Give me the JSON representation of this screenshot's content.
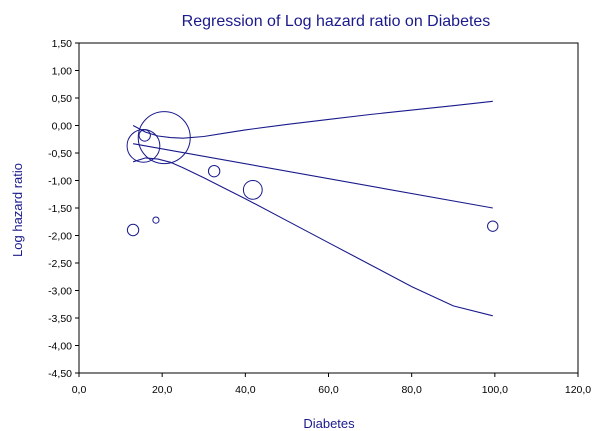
{
  "chart_data": {
    "type": "scatter",
    "title": "Regression of Log hazard ratio on Diabetes",
    "xlabel": "Diabetes",
    "ylabel": "Log hazard ratio",
    "xlim": [
      0,
      120
    ],
    "ylim": [
      -4.5,
      1.5
    ],
    "x_ticks": [
      "0,0",
      "20,0",
      "40,0",
      "60,0",
      "80,0",
      "100,0",
      "120,0"
    ],
    "y_ticks": [
      "1,50",
      "1,00",
      "0,50",
      "0,00",
      "-0,50",
      "-1,00",
      "-1,50",
      "-2,00",
      "-2,50",
      "-3,00",
      "-3,50",
      "-4,00",
      "-4,50"
    ],
    "grid": false,
    "points": [
      {
        "x": 13.0,
        "y": -1.9,
        "weight": 1.2
      },
      {
        "x": 15.8,
        "y": -0.18,
        "weight": 1.2
      },
      {
        "x": 15.5,
        "y": -0.37,
        "weight": 10.0
      },
      {
        "x": 18.5,
        "y": -1.72,
        "weight": 0.35
      },
      {
        "x": 20.5,
        "y": -0.22,
        "weight": 25.0
      },
      {
        "x": 32.5,
        "y": -0.83,
        "weight": 1.2
      },
      {
        "x": 41.8,
        "y": -1.17,
        "weight": 3.3
      },
      {
        "x": 99.5,
        "y": -1.83,
        "weight": 1.0
      }
    ],
    "regression_line": {
      "x": [
        13,
        99.5
      ],
      "y": [
        -0.33,
        -1.5
      ]
    },
    "ci_upper": {
      "x": [
        13,
        16,
        19,
        22,
        25,
        30,
        35,
        40,
        50,
        60,
        70,
        80,
        90,
        99.5
      ],
      "y": [
        0.0,
        -0.12,
        -0.19,
        -0.22,
        -0.23,
        -0.2,
        -0.14,
        -0.08,
        0.02,
        0.11,
        0.2,
        0.28,
        0.36,
        0.44
      ]
    },
    "ci_lower": {
      "x": [
        13,
        16,
        19,
        22,
        25,
        30,
        35,
        40,
        50,
        60,
        70,
        80,
        90,
        99.5
      ],
      "y": [
        -0.66,
        -0.59,
        -0.61,
        -0.67,
        -0.77,
        -0.95,
        -1.14,
        -1.33,
        -1.73,
        -2.13,
        -2.53,
        -2.93,
        -3.28,
        -3.46
      ]
    },
    "colors": {
      "line": "#1a1a8c",
      "marker": "#1a1a8c",
      "text": "#1a1a8c",
      "axis": "#000000"
    }
  }
}
